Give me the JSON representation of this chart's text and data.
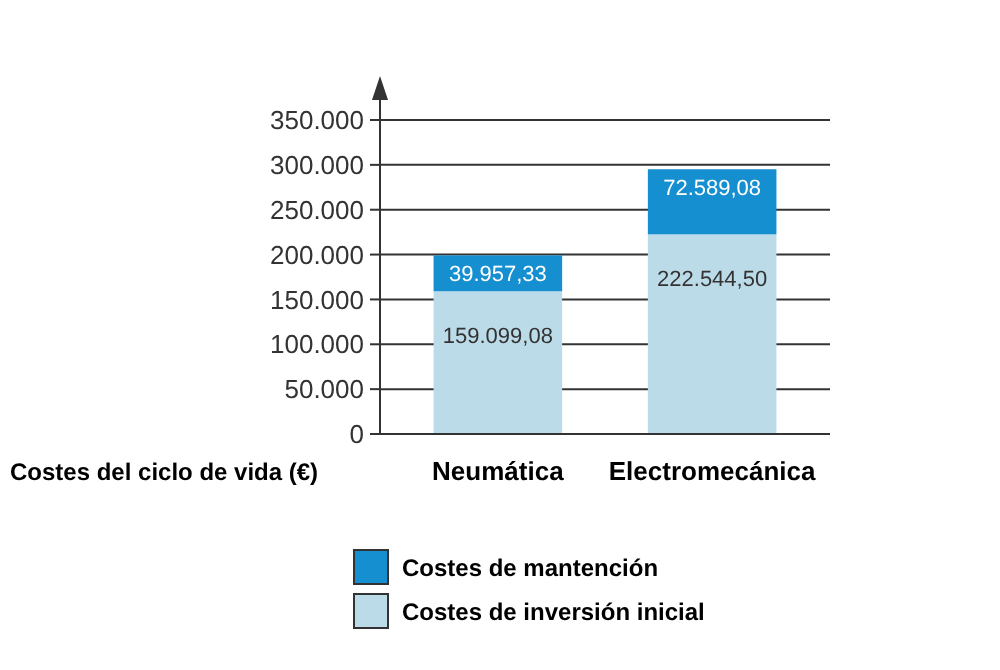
{
  "chart_data": {
    "type": "bar",
    "stacked": true,
    "xlabel": "Costes del ciclo de vida (€)",
    "categories": [
      "Neumática",
      "Electromecánica"
    ],
    "series": [
      {
        "name": "Costes de inversión inicial",
        "color": "#bcdbe9",
        "values": [
          159099.08,
          222544.5
        ],
        "value_labels": [
          "159.099,08",
          "222.544,50"
        ]
      },
      {
        "name": "Costes de mantención",
        "color": "#168fd0",
        "values": [
          39957.33,
          72589.08
        ],
        "value_labels": [
          "39.957,33",
          "72.589,08"
        ]
      }
    ],
    "ylim": [
      0,
      350000
    ],
    "yticks": [
      0,
      {
        "value": 50000,
        "label": "50.000"
      },
      {
        "value": 100000,
        "label": "100.000"
      },
      {
        "value": 150000,
        "label": "150.000"
      },
      {
        "value": 200000,
        "label": "200.000"
      },
      {
        "value": 250000,
        "label": "250.000"
      },
      {
        "value": 300000,
        "label": "300.000"
      },
      {
        "value": 350000,
        "label": "350.000"
      }
    ],
    "grid": "y",
    "legend": "bottom"
  }
}
